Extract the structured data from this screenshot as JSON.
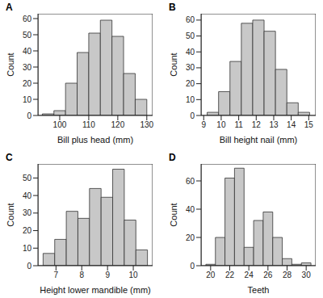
{
  "chart_data": [
    {
      "type": "histogram",
      "panel": "A",
      "x_label": "Bill plus head (mm)",
      "y_label": "Count",
      "bins": [
        94,
        98,
        102,
        106,
        110,
        114,
        118,
        122,
        126,
        130
      ],
      "values": [
        1,
        3,
        20,
        39,
        51,
        59,
        49,
        26,
        10
      ],
      "color": "#c8c8c8",
      "xlim": [
        92.5,
        132
      ],
      "xticks": [
        100,
        110,
        120,
        130
      ],
      "ylim": [
        0,
        63
      ],
      "yticks": [
        0,
        10,
        20,
        30,
        40,
        50,
        60
      ]
    },
    {
      "type": "histogram",
      "panel": "B",
      "x_label": "Bill height nail (mm)",
      "y_label": "Count",
      "bins": [
        9.2,
        9.85,
        10.5,
        11.15,
        11.8,
        12.45,
        13.1,
        13.75,
        14.4,
        15.05
      ],
      "values": [
        2,
        15,
        34,
        58,
        60,
        53,
        29,
        8,
        2
      ],
      "color": "#c8c8c8",
      "xlim": [
        8.85,
        15.4
      ],
      "xticks": [
        9,
        10,
        11,
        12,
        13,
        14,
        15
      ],
      "ylim": [
        0,
        64
      ],
      "yticks": [
        0,
        10,
        20,
        30,
        40,
        50,
        60
      ]
    },
    {
      "type": "histogram",
      "panel": "C",
      "x_label": "Height lower mandible (mm)",
      "y_label": "Count",
      "bins": [
        6.5,
        6.95,
        7.4,
        7.85,
        8.3,
        8.75,
        9.2,
        9.65,
        10.1,
        10.55
      ],
      "values": [
        7,
        15,
        31,
        27,
        44,
        39,
        55,
        26,
        9
      ],
      "color": "#c8c8c8",
      "xlim": [
        6.3,
        10.75
      ],
      "xticks": [
        7,
        8,
        9,
        10
      ],
      "ylim": [
        0,
        58
      ],
      "yticks": [
        0,
        10,
        20,
        30,
        40,
        50
      ]
    },
    {
      "type": "histogram",
      "panel": "D",
      "x_label": "Teeth",
      "y_label": "Count",
      "bins": [
        19.5,
        20.5,
        21.5,
        22.5,
        23.5,
        24.5,
        25.5,
        26.5,
        27.5,
        28.5,
        29.5,
        30.5
      ],
      "values": [
        1,
        20,
        62,
        69,
        13,
        32,
        38,
        20,
        5,
        1,
        2
      ],
      "color": "#c8c8c8",
      "xlim": [
        19,
        31
      ],
      "xticks": [
        20,
        22,
        24,
        26,
        28,
        30
      ],
      "ylim": [
        0,
        72
      ],
      "yticks": [
        0,
        20,
        40,
        60
      ]
    }
  ]
}
